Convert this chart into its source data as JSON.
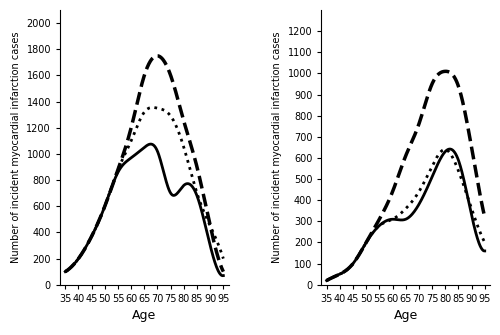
{
  "men": {
    "ages": [
      35,
      40,
      45,
      50,
      55,
      60,
      65,
      70,
      75,
      80,
      85,
      90,
      95
    ],
    "solid_2015": [
      100,
      200,
      370,
      600,
      860,
      970,
      1050,
      1020,
      700,
      760,
      680,
      300,
      70
    ],
    "dotted_2025": [
      100,
      200,
      370,
      600,
      880,
      1100,
      1320,
      1350,
      1290,
      1050,
      700,
      450,
      200
    ],
    "dashed_2035": [
      100,
      200,
      370,
      600,
      880,
      1200,
      1600,
      1750,
      1600,
      1250,
      900,
      450,
      100
    ],
    "ylabel": "Number of incident myocardial infarction cases",
    "xlabel": "Age",
    "ylim": [
      0,
      2100
    ],
    "yticks": [
      0,
      200,
      400,
      600,
      800,
      1000,
      1200,
      1400,
      1600,
      1800,
      2000
    ]
  },
  "women": {
    "ages": [
      35,
      40,
      45,
      50,
      55,
      60,
      65,
      70,
      75,
      80,
      85,
      90,
      95
    ],
    "solid_2015": [
      20,
      50,
      100,
      200,
      280,
      310,
      310,
      380,
      510,
      630,
      590,
      330,
      160
    ],
    "dotted_2025": [
      20,
      50,
      100,
      200,
      280,
      310,
      360,
      440,
      560,
      640,
      540,
      360,
      200
    ],
    "dashed_2035": [
      20,
      50,
      100,
      200,
      310,
      440,
      610,
      760,
      950,
      1010,
      940,
      650,
      320
    ],
    "ylabel": "Number of incident myocardial infarction cases",
    "xlabel": "Age",
    "ylim": [
      0,
      1300
    ],
    "yticks": [
      0,
      100,
      200,
      300,
      400,
      500,
      600,
      700,
      800,
      900,
      1000,
      1100,
      1200
    ]
  },
  "xticks": [
    35,
    40,
    45,
    50,
    55,
    60,
    65,
    70,
    75,
    80,
    85,
    90,
    95
  ],
  "line_color": "#000000",
  "solid_lw": 2.0,
  "dotted_lw": 2.0,
  "dashed_lw": 2.5
}
